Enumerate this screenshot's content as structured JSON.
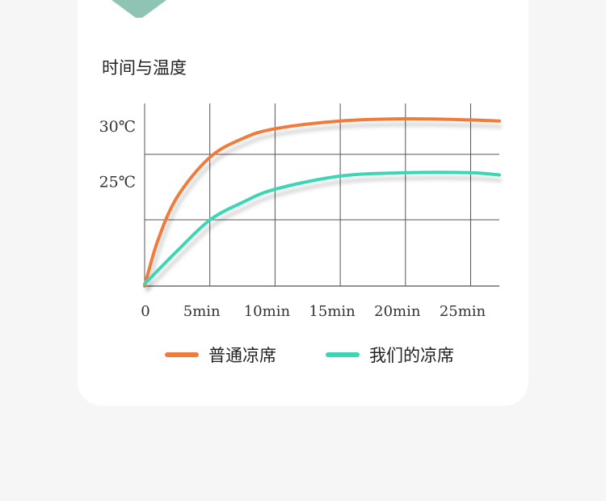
{
  "title": "时间与温度",
  "colors": {
    "accent_triangle": "#8fc4b4",
    "grid": "#555555"
  },
  "chart_data": {
    "type": "line",
    "title": "时间与温度",
    "xlabel": "",
    "ylabel": "",
    "x_tick_labels": [
      "0",
      "5min",
      "10min",
      "15min",
      "20min",
      "25min"
    ],
    "x_ticks": [
      0,
      5,
      10,
      15,
      20,
      25
    ],
    "y_tick_labels": [
      "30℃",
      "25℃"
    ],
    "y_ticks": [
      30,
      25
    ],
    "xlim": [
      0,
      27.2
    ],
    "ylim": [
      15.4,
      32
    ],
    "grid": true,
    "legend_position": "bottom",
    "x": [
      0,
      1,
      2.5,
      5,
      7.5,
      10,
      15,
      20,
      25,
      27.2
    ],
    "series": [
      {
        "name": "普通凉席",
        "color": "#f07b3a",
        "values": [
          15.4,
          19.5,
          23.5,
          27.1,
          28.8,
          29.7,
          30.4,
          30.6,
          30.5,
          30.4
        ]
      },
      {
        "name": "我们的凉席",
        "color": "#3dd6b4",
        "values": [
          15.6,
          16.8,
          18.6,
          21.4,
          23.0,
          24.2,
          25.4,
          25.7,
          25.7,
          25.5
        ]
      }
    ]
  }
}
